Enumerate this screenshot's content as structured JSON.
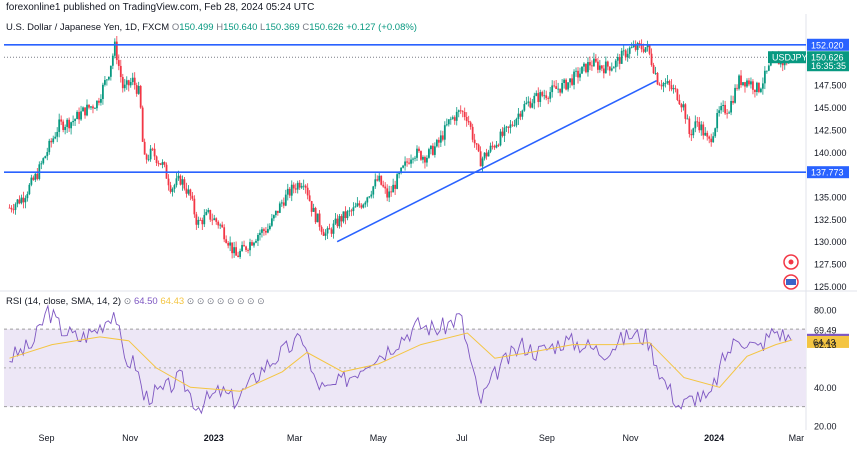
{
  "header": {
    "published": "forexonline1 published on TradingView.com, Feb 28, 2024 05:24 UTC",
    "symbol": "U.S. Dollar / Japanese Yen, 1D, FXCM",
    "open_label": "O",
    "open": "150.499",
    "high_label": "H",
    "high": "150.640",
    "low_label": "L",
    "low": "150.369",
    "close_label": "C",
    "close": "150.626",
    "change": "+0.127 (+0.08%)"
  },
  "rsi_header": {
    "label": "RSI (14, close, SMA, 14, 2)",
    "rsi_value": "64.50",
    "sma_value": "64.43"
  },
  "colors": {
    "up": "#089981",
    "down": "#f23645",
    "hline": "#2962ff",
    "trendline": "#2962ff",
    "rsi": "#7e57c2",
    "rsi_sma": "#f4c542",
    "rsi_band": "#ede7f6",
    "price_tag": "#2962ff"
  },
  "chart_data": [
    {
      "type": "candlestick",
      "title": "U.S. Dollar / Japanese Yen, 1D, FXCM",
      "x_ticks": [
        "Sep",
        "Nov",
        "2023",
        "Mar",
        "May",
        "Jul",
        "Sep",
        "Nov",
        "2024",
        "Mar"
      ],
      "y_ticks": [
        "152.020",
        "150.626",
        "147.500",
        "145.000",
        "142.500",
        "140.000",
        "137.773",
        "135.000",
        "132.500",
        "130.000",
        "127.500",
        "125.000"
      ],
      "ylim": [
        124.6,
        153.0
      ],
      "last_price": 150.626,
      "last_label": "USDJPY",
      "countdown": "16:35:35",
      "horizontal_lines": [
        152.02,
        137.773
      ],
      "trendline": [
        {
          "x": "2023-04-01",
          "y": 130.0
        },
        {
          "x": "2023-11-20",
          "y": 148.0
        }
      ],
      "path": [
        [
          "2022-08-05",
          133.8
        ],
        [
          "2022-08-15",
          135.0
        ],
        [
          "2022-08-25",
          137.5
        ],
        [
          "2022-09-02",
          140.3
        ],
        [
          "2022-09-10",
          143.0
        ],
        [
          "2022-09-20",
          143.5
        ],
        [
          "2022-09-28",
          144.6
        ],
        [
          "2022-10-08",
          145.6
        ],
        [
          "2022-10-16",
          148.7
        ],
        [
          "2022-10-21",
          151.9
        ],
        [
          "2022-10-27",
          147.0
        ],
        [
          "2022-11-03",
          148.0
        ],
        [
          "2022-11-08",
          146.5
        ],
        [
          "2022-11-11",
          139.0
        ],
        [
          "2022-11-17",
          140.0
        ],
        [
          "2022-11-25",
          138.5
        ],
        [
          "2022-12-01",
          136.0
        ],
        [
          "2022-12-08",
          137.0
        ],
        [
          "2022-12-15",
          135.0
        ],
        [
          "2022-12-20",
          132.0
        ],
        [
          "2022-12-28",
          133.0
        ],
        [
          "2023-01-05",
          132.0
        ],
        [
          "2023-01-12",
          130.0
        ],
        [
          "2023-01-17",
          128.3
        ],
        [
          "2023-01-25",
          129.5
        ],
        [
          "2023-02-03",
          131.0
        ],
        [
          "2023-02-10",
          131.5
        ],
        [
          "2023-02-20",
          134.5
        ],
        [
          "2023-03-01",
          136.2
        ],
        [
          "2023-03-08",
          137.0
        ],
        [
          "2023-03-14",
          133.5
        ],
        [
          "2023-03-24",
          130.7
        ],
        [
          "2023-04-03",
          132.5
        ],
        [
          "2023-04-13",
          133.5
        ],
        [
          "2023-04-20",
          134.5
        ],
        [
          "2023-05-01",
          137.0
        ],
        [
          "2023-05-08",
          135.0
        ],
        [
          "2023-05-17",
          137.5
        ],
        [
          "2023-05-26",
          140.0
        ],
        [
          "2023-06-05",
          139.5
        ],
        [
          "2023-06-14",
          141.0
        ],
        [
          "2023-06-22",
          143.5
        ],
        [
          "2023-06-30",
          144.6
        ],
        [
          "2023-07-05",
          144.0
        ],
        [
          "2023-07-14",
          139.0
        ],
        [
          "2023-07-20",
          140.0
        ],
        [
          "2023-07-28",
          141.5
        ],
        [
          "2023-08-04",
          142.5
        ],
        [
          "2023-08-14",
          145.0
        ],
        [
          "2023-08-23",
          146.0
        ],
        [
          "2023-09-04",
          146.8
        ],
        [
          "2023-09-14",
          147.5
        ],
        [
          "2023-09-26",
          149.0
        ],
        [
          "2023-10-03",
          150.0
        ],
        [
          "2023-10-12",
          149.5
        ],
        [
          "2023-10-20",
          149.8
        ],
        [
          "2023-10-31",
          151.5
        ],
        [
          "2023-11-13",
          151.8
        ],
        [
          "2023-11-21",
          148.0
        ],
        [
          "2023-11-28",
          147.5
        ],
        [
          "2023-12-05",
          146.5
        ],
        [
          "2023-12-10",
          145.0
        ],
        [
          "2023-12-14",
          142.0
        ],
        [
          "2023-12-20",
          143.5
        ],
        [
          "2023-12-28",
          141.0
        ],
        [
          "2024-01-05",
          144.5
        ],
        [
          "2024-01-12",
          145.0
        ],
        [
          "2024-01-19",
          148.0
        ],
        [
          "2024-01-26",
          148.0
        ],
        [
          "2024-02-02",
          147.0
        ],
        [
          "2024-02-09",
          149.0
        ],
        [
          "2024-02-14",
          150.4
        ],
        [
          "2024-02-21",
          150.0
        ],
        [
          "2024-02-27",
          150.626
        ]
      ]
    },
    {
      "type": "line",
      "title": "RSI (14, close, SMA, 14, 2)",
      "y_ticks": [
        "80.00",
        "69.49",
        "64.50",
        "64.43",
        "62.13",
        "40.00",
        "20.00"
      ],
      "ylim": [
        19,
        84
      ],
      "band": [
        30,
        70
      ],
      "series": [
        {
          "name": "RSI",
          "points": [
            [
              "2022-08-05",
              55
            ],
            [
              "2022-08-22",
              62
            ],
            [
              "2022-09-02",
              80
            ],
            [
              "2022-09-12",
              70
            ],
            [
              "2022-09-25",
              65
            ],
            [
              "2022-10-08",
              70
            ],
            [
              "2022-10-21",
              80
            ],
            [
              "2022-10-27",
              55
            ],
            [
              "2022-11-05",
              52
            ],
            [
              "2022-11-11",
              35
            ],
            [
              "2022-11-25",
              38
            ],
            [
              "2022-12-08",
              45
            ],
            [
              "2022-12-20",
              30
            ],
            [
              "2023-01-06",
              38
            ],
            [
              "2023-01-17",
              33
            ],
            [
              "2023-02-06",
              50
            ],
            [
              "2023-02-20",
              58
            ],
            [
              "2023-03-08",
              66
            ],
            [
              "2023-03-14",
              45
            ],
            [
              "2023-03-24",
              38
            ],
            [
              "2023-04-13",
              47
            ],
            [
              "2023-04-25",
              55
            ],
            [
              "2023-05-05",
              58
            ],
            [
              "2023-05-17",
              65
            ],
            [
              "2023-05-30",
              72
            ],
            [
              "2023-06-15",
              70
            ],
            [
              "2023-06-30",
              77
            ],
            [
              "2023-07-14",
              32
            ],
            [
              "2023-07-28",
              50
            ],
            [
              "2023-08-14",
              62
            ],
            [
              "2023-08-25",
              58
            ],
            [
              "2023-09-14",
              64
            ],
            [
              "2023-09-28",
              62
            ],
            [
              "2023-10-12",
              58
            ],
            [
              "2023-10-31",
              67
            ],
            [
              "2023-11-13",
              66
            ],
            [
              "2023-11-24",
              45
            ],
            [
              "2023-12-07",
              30
            ],
            [
              "2023-12-20",
              36
            ],
            [
              "2023-12-28",
              33
            ],
            [
              "2024-01-08",
              55
            ],
            [
              "2024-01-19",
              66
            ],
            [
              "2024-02-02",
              60
            ],
            [
              "2024-02-14",
              69.5
            ],
            [
              "2024-02-27",
              64.5
            ]
          ]
        },
        {
          "name": "SMA",
          "points": [
            [
              "2022-08-05",
              55
            ],
            [
              "2022-09-05",
              62
            ],
            [
              "2022-10-10",
              66
            ],
            [
              "2022-10-31",
              64
            ],
            [
              "2022-11-20",
              50
            ],
            [
              "2022-12-15",
              40
            ],
            [
              "2023-01-20",
              38
            ],
            [
              "2023-02-20",
              48
            ],
            [
              "2023-03-10",
              58
            ],
            [
              "2023-04-05",
              48
            ],
            [
              "2023-05-01",
              52
            ],
            [
              "2023-06-01",
              62
            ],
            [
              "2023-07-05",
              68
            ],
            [
              "2023-07-25",
              55
            ],
            [
              "2023-08-20",
              58
            ],
            [
              "2023-09-20",
              62
            ],
            [
              "2023-10-20",
              62
            ],
            [
              "2023-11-15",
              63
            ],
            [
              "2023-12-10",
              45
            ],
            [
              "2024-01-05",
              40
            ],
            [
              "2024-01-25",
              56
            ],
            [
              "2024-02-15",
              62
            ],
            [
              "2024-02-27",
              64.43
            ]
          ]
        }
      ]
    }
  ]
}
